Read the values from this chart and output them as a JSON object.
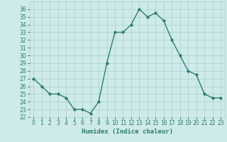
{
  "x": [
    0,
    1,
    2,
    3,
    4,
    5,
    6,
    7,
    8,
    9,
    10,
    11,
    12,
    13,
    14,
    15,
    16,
    17,
    18,
    19,
    20,
    21,
    22,
    23
  ],
  "y": [
    27,
    26,
    25,
    25,
    24.5,
    23,
    23,
    22.5,
    24,
    29,
    33,
    33,
    34,
    36,
    35,
    35.5,
    34.5,
    32,
    30,
    28,
    27.5,
    25,
    24.5,
    24.5
  ],
  "xlabel": "Humidex (Indice chaleur)",
  "xlim": [
    -0.5,
    23.5
  ],
  "ylim": [
    22,
    37
  ],
  "yticks": [
    22,
    23,
    24,
    25,
    26,
    27,
    28,
    29,
    30,
    31,
    32,
    33,
    34,
    35,
    36
  ],
  "xticks": [
    0,
    1,
    2,
    3,
    4,
    5,
    6,
    7,
    8,
    9,
    10,
    11,
    12,
    13,
    14,
    15,
    16,
    17,
    18,
    19,
    20,
    21,
    22,
    23
  ],
  "line_color": "#2e7d6e",
  "bg_color": "#ceeaea",
  "grid_color": "#aacfcf",
  "marker": "D",
  "marker_size": 2.2,
  "line_width": 1.0,
  "tick_fontsize": 5.5,
  "xlabel_fontsize": 6.5,
  "spine_color": "#aacfcf"
}
